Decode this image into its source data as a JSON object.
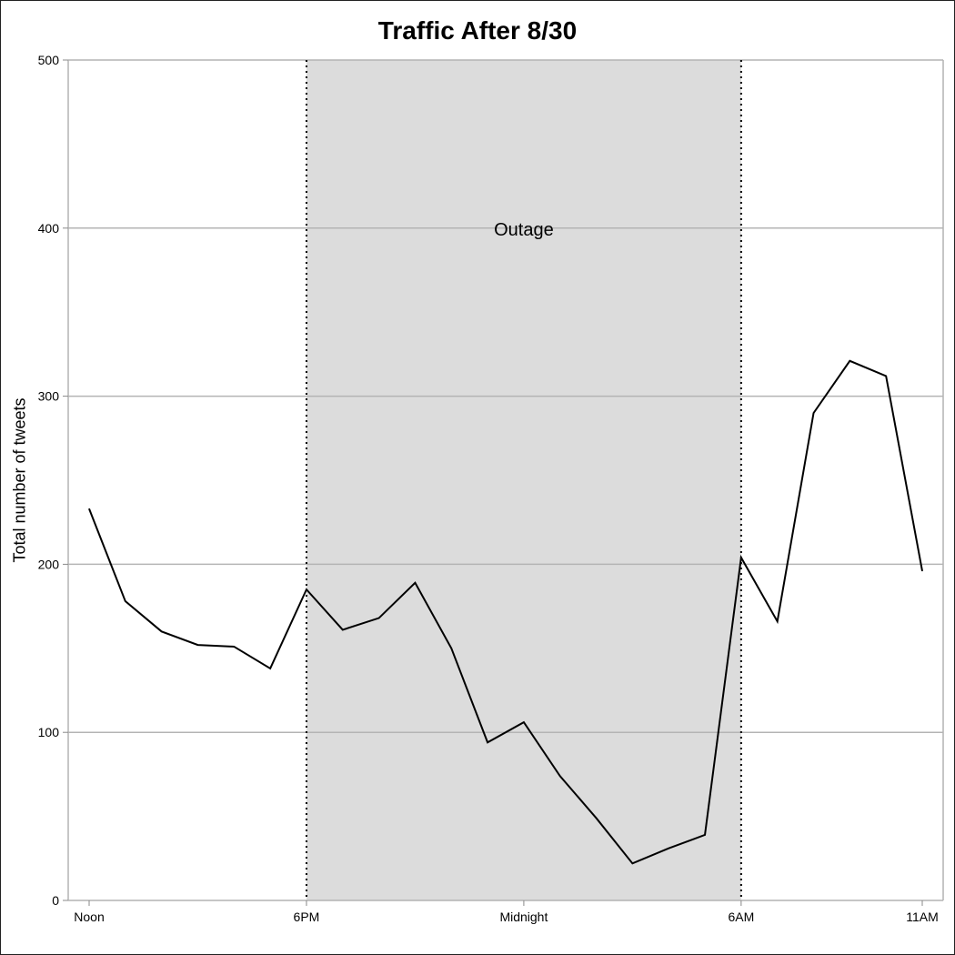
{
  "chart_data": {
    "type": "line",
    "title": "Traffic After 8/30",
    "xlabel": "",
    "ylabel": "Total number of tweets",
    "ylim": [
      0,
      500
    ],
    "yticks": [
      0,
      100,
      200,
      300,
      400,
      500
    ],
    "xlim": [
      0,
      23
    ],
    "xticks": [
      {
        "x": 0,
        "label": "Noon"
      },
      {
        "x": 6,
        "label": "6PM"
      },
      {
        "x": 12,
        "label": "Midnight"
      },
      {
        "x": 18,
        "label": "6AM"
      },
      {
        "x": 23,
        "label": "11AM"
      }
    ],
    "grid": true,
    "series": [
      {
        "x": [
          0,
          1,
          2,
          3,
          4,
          5,
          6,
          7,
          8,
          9,
          10,
          11,
          12,
          13,
          14,
          15,
          16,
          17,
          18,
          19,
          20,
          21,
          22,
          23
        ],
        "values": [
          233,
          178,
          160,
          152,
          151,
          138,
          185,
          161,
          168,
          189,
          150,
          94,
          106,
          74,
          49,
          22,
          31,
          39,
          204,
          166,
          290,
          321,
          312,
          196
        ]
      }
    ],
    "annotations": [
      {
        "type": "shaded_region",
        "x_start": 6,
        "x_end": 18,
        "label": "Outage",
        "label_y": 400,
        "color": "#dcdcdc",
        "border": "dotted"
      }
    ],
    "colors": {
      "line": "#000000",
      "grid": "#b4b4b4",
      "shade": "#dcdcdc"
    }
  }
}
